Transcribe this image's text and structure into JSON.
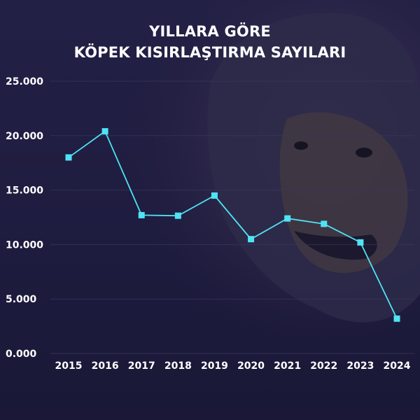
{
  "title": {
    "line1": "YILLARA GÖRE",
    "line2": "KÖPEK KISIRLAŞTIRMA SAYILARI"
  },
  "colors": {
    "background": "#1f1d3d",
    "series": "#4fe3f4",
    "text": "#ffffff",
    "grid": "#3a3861"
  },
  "chart_data": {
    "type": "line",
    "title": "YILLARA GÖRE KÖPEK KISIRLAŞTIRMA SAYILARI",
    "xlabel": "",
    "ylabel": "",
    "categories": [
      "2015",
      "2016",
      "2017",
      "2018",
      "2019",
      "2020",
      "2021",
      "2022",
      "2023",
      "2024"
    ],
    "series": [
      {
        "values": [
          18000,
          20400,
          12700,
          12650,
          14500,
          10500,
          12400,
          11900,
          10200,
          3200
        ]
      }
    ],
    "ylim": [
      0,
      25000
    ],
    "yticks": [
      0,
      5000,
      10000,
      15000,
      20000,
      25000
    ],
    "ytick_labels": [
      "0.000",
      "5.000",
      "10.000",
      "15.000",
      "20.000",
      "25.000"
    ],
    "grid": true,
    "marker": "square"
  }
}
